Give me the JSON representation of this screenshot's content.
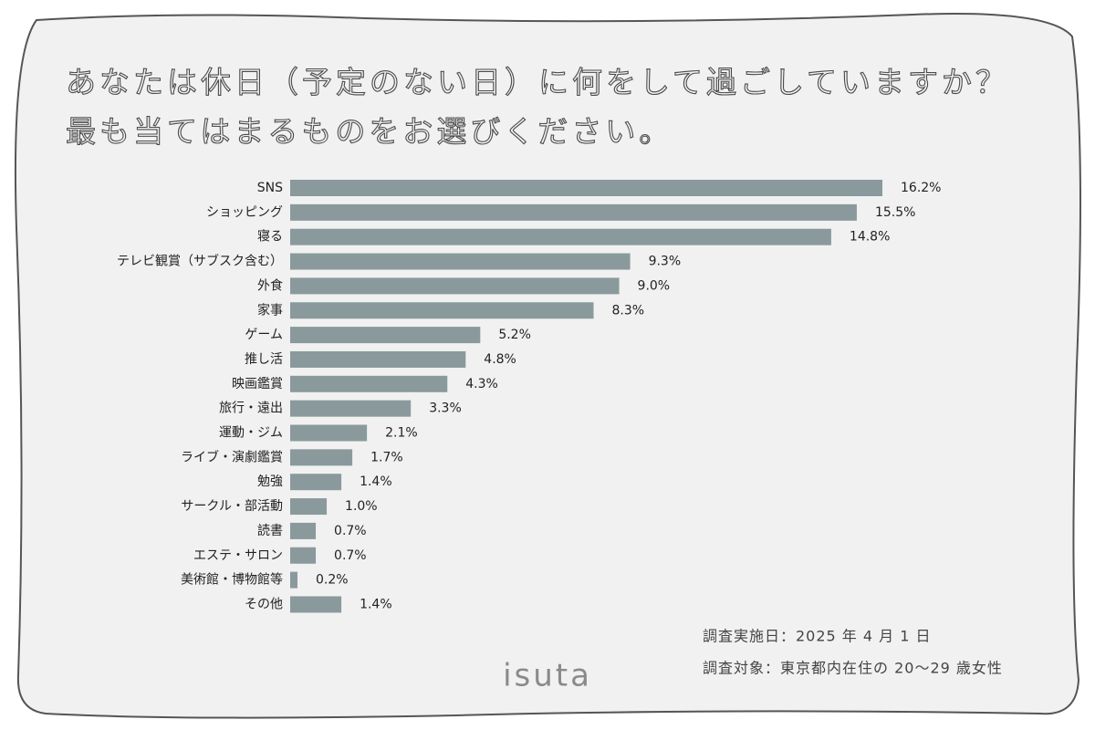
{
  "chart_data": {
    "type": "bar",
    "orientation": "horizontal",
    "title": [
      "あなたは休日（予定のない日）に何をして過ごしていますか？",
      "最も当てはまるものをお選びください。"
    ],
    "categories": [
      "SNS",
      "ショッピング",
      "寝る",
      "テレビ観賞（サブスク含む）",
      "外食",
      "家事",
      "ゲーム",
      "推し活",
      "映画鑑賞",
      "旅行・遠出",
      "運動・ジム",
      "ライブ・演劇鑑賞",
      "勉強",
      "サークル・部活動",
      "読書",
      "エステ・サロン",
      "美術館・博物館等",
      "その他"
    ],
    "values": [
      16.2,
      15.5,
      14.8,
      9.3,
      9.0,
      8.3,
      5.2,
      4.8,
      4.3,
      3.3,
      2.1,
      1.7,
      1.4,
      1.0,
      0.7,
      0.7,
      0.2,
      1.4
    ],
    "value_labels": [
      "16.2%",
      "15.5%",
      "14.8%",
      "9.3%",
      "9.0%",
      "8.3%",
      "5.2%",
      "4.8%",
      "4.3%",
      "3.3%",
      "2.1%",
      "1.7%",
      "1.4%",
      "1.0%",
      "0.7%",
      "0.7%",
      "0.2%",
      "1.4%"
    ],
    "color": "#8a9a9c",
    "notes": [
      "調査実施日：2025 年 4 月 1 日",
      "調査対象：東京都内在住の 20〜29 歳女性"
    ],
    "brand": "isuta"
  }
}
